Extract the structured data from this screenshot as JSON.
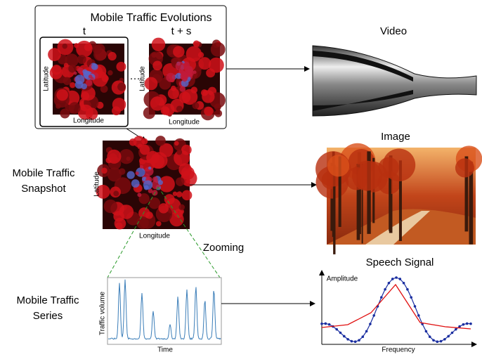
{
  "evolutions": {
    "title": "Mobile Traffic Evolutions",
    "frames": [
      {
        "label": "t",
        "y_axis": "Latitude",
        "x_axis": "Longitude"
      },
      {
        "label": "t + s",
        "y_axis": "Latitude",
        "x_axis": "Longitude"
      }
    ],
    "ellipsis": "···"
  },
  "snapshot": {
    "label": [
      "Mobile Traffic",
      "Snapshot"
    ],
    "y_axis": "Latitude",
    "x_axis": "Longitude"
  },
  "zoom_label": "Zooming",
  "series": {
    "label": [
      "Mobile Traffic",
      "Series"
    ],
    "y_axis": "Traffic volume",
    "x_axis": "Time"
  },
  "outputs": {
    "video": "Video",
    "image": "Image",
    "speech": {
      "title": "Speech Signal",
      "y_axis": "Amplitude",
      "x_axis": "Frequency"
    }
  }
}
